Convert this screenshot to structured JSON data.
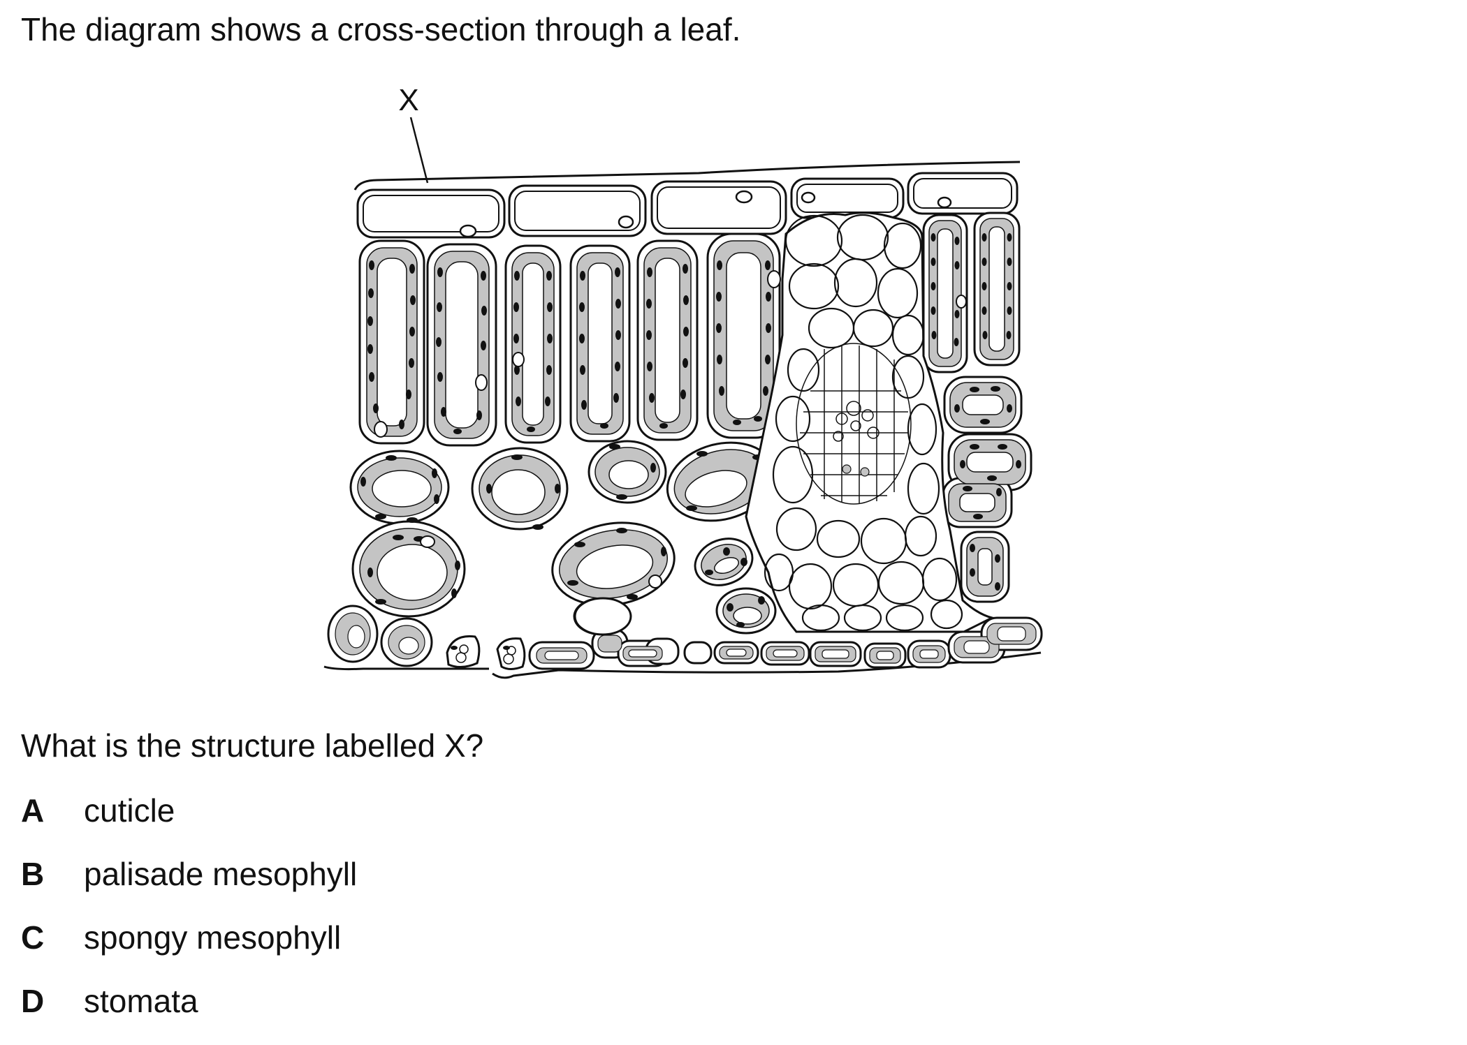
{
  "question": {
    "intro": "The diagram shows a cross-section through a leaf.",
    "prompt": "What is the structure labelled X?",
    "options": [
      {
        "letter": "A",
        "text": "cuticle"
      },
      {
        "letter": "B",
        "text": "palisade mesophyll"
      },
      {
        "letter": "C",
        "text": "spongy mesophyll"
      },
      {
        "letter": "D",
        "text": "stomata"
      }
    ]
  },
  "diagram": {
    "label_x": "X"
  },
  "colors": {
    "ink": "#111111",
    "cytoplasm": "#c4c4c4",
    "cell_fill": "#ffffff"
  }
}
